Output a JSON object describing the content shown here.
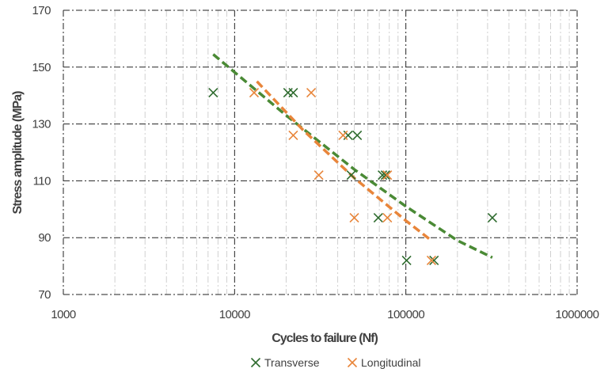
{
  "chart_data": {
    "type": "scatter",
    "title": "",
    "xlabel": "Cycles to failure (Nf)",
    "ylabel": "Stress amplitude (MPa)",
    "x_scale": "log",
    "xlim": [
      1000,
      1000000
    ],
    "ylim": [
      70,
      170
    ],
    "x_ticks": [
      "1000",
      "10000",
      "100000",
      "1000000"
    ],
    "y_ticks": [
      "70",
      "90",
      "110",
      "130",
      "150",
      "170"
    ],
    "grid": true,
    "legend_position": "bottom",
    "series": [
      {
        "name": "Transverse",
        "marker": "x",
        "color": "#2e6b2e",
        "trend_color": "#4a8a35",
        "points": [
          {
            "x": 7500,
            "y": 141
          },
          {
            "x": 20500,
            "y": 141
          },
          {
            "x": 22000,
            "y": 141
          },
          {
            "x": 46000,
            "y": 126
          },
          {
            "x": 52000,
            "y": 126
          },
          {
            "x": 48000,
            "y": 112
          },
          {
            "x": 73000,
            "y": 112
          },
          {
            "x": 76000,
            "y": 112
          },
          {
            "x": 69000,
            "y": 97
          },
          {
            "x": 320000,
            "y": 97
          },
          {
            "x": 101000,
            "y": 82
          },
          {
            "x": 146000,
            "y": 82
          }
        ],
        "trendline": [
          {
            "x": 7500,
            "y": 154.5
          },
          {
            "x": 20000,
            "y": 133
          },
          {
            "x": 50000,
            "y": 114
          },
          {
            "x": 100000,
            "y": 101
          },
          {
            "x": 200000,
            "y": 89
          },
          {
            "x": 320000,
            "y": 83
          }
        ]
      },
      {
        "name": "Longitudinal",
        "marker": "x",
        "color": "#e8853a",
        "trend_color": "#e8853a",
        "points": [
          {
            "x": 13000,
            "y": 141
          },
          {
            "x": 28000,
            "y": 141
          },
          {
            "x": 22000,
            "y": 126
          },
          {
            "x": 43000,
            "y": 126
          },
          {
            "x": 31000,
            "y": 112
          },
          {
            "x": 78000,
            "y": 112
          },
          {
            "x": 50000,
            "y": 97
          },
          {
            "x": 78000,
            "y": 97
          },
          {
            "x": 141000,
            "y": 82
          }
        ],
        "trendline": [
          {
            "x": 13500,
            "y": 145
          },
          {
            "x": 25000,
            "y": 128
          },
          {
            "x": 50000,
            "y": 111
          },
          {
            "x": 100000,
            "y": 96
          },
          {
            "x": 141000,
            "y": 89
          }
        ]
      }
    ]
  }
}
